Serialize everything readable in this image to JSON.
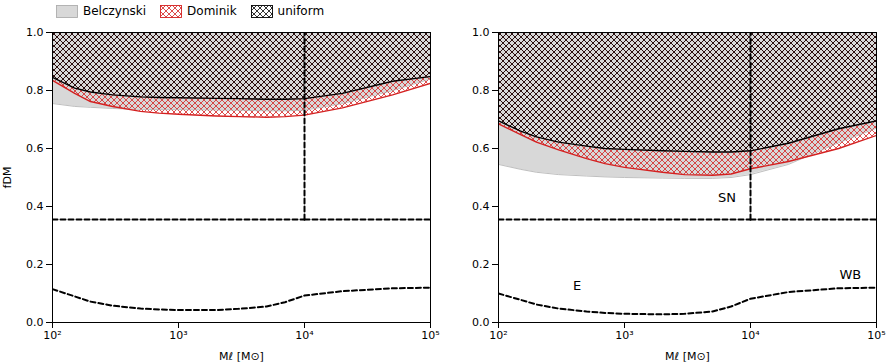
{
  "chart_data": [
    {
      "type": "area",
      "xlabel": "Mℓ [M⊙]",
      "ylabel": "fDM",
      "log": "x",
      "grid": false,
      "legend": "lower left",
      "xlim": [
        100,
        100000
      ],
      "ylim": [
        0.0,
        1.0
      ],
      "xticks": [
        {
          "value": 100,
          "label": "10²"
        },
        {
          "value": 1000,
          "label": "10³"
        },
        {
          "value": 10000,
          "label": "10⁴"
        },
        {
          "value": 100000,
          "label": "10⁵"
        }
      ],
      "yticks": [
        {
          "value": 0.0,
          "label": "0.0"
        },
        0.2,
        0.4,
        0.6,
        0.8,
        {
          "value": 1.0,
          "label": "1.0"
        }
      ],
      "x": [
        100,
        150,
        200,
        300,
        500,
        700,
        1000,
        2000,
        3000,
        5000,
        7000,
        10000,
        20000,
        50000,
        100000
      ],
      "series": [
        {
          "name": "Belczynski",
          "type": "area",
          "color": "#d8d8d8",
          "values": [
            0.755,
            0.745,
            0.742,
            0.738,
            0.735,
            0.734,
            0.734,
            0.733,
            0.732,
            0.73,
            0.73,
            0.732,
            0.755,
            0.8,
            0.84
          ]
        },
        {
          "name": "Dominik",
          "type": "hatch",
          "color": "#d42020",
          "values": [
            0.835,
            0.79,
            0.762,
            0.745,
            0.728,
            0.722,
            0.718,
            0.712,
            0.71,
            0.708,
            0.71,
            0.715,
            0.74,
            0.785,
            0.825
          ]
        },
        {
          "name": "uniform",
          "type": "hatch",
          "color": "black",
          "values": [
            0.845,
            0.808,
            0.795,
            0.785,
            0.778,
            0.776,
            0.775,
            0.773,
            0.772,
            0.77,
            0.77,
            0.772,
            0.79,
            0.832,
            0.848
          ]
        },
        {
          "type": "line",
          "color": "black",
          "line_style": "dashed",
          "x": [
            100,
            10000
          ],
          "values": [
            0.355,
            0.355
          ]
        },
        {
          "type": "line",
          "color": "black",
          "line_style": "dashed",
          "x": [
            10000,
            10000
          ],
          "values": [
            0.355,
            1.0
          ]
        },
        {
          "type": "line",
          "color": "black",
          "line_style": "dashed",
          "x": [
            10000,
            100000
          ],
          "values": [
            0.355,
            0.355
          ]
        },
        {
          "type": "line",
          "color": "black",
          "line_style": "dashed",
          "values": [
            0.115,
            0.09,
            0.072,
            0.058,
            0.048,
            0.045,
            0.043,
            0.043,
            0.047,
            0.055,
            0.07,
            0.093,
            0.108,
            0.118,
            0.12
          ]
        }
      ]
    },
    {
      "type": "area",
      "xlabel": "Mℓ [M⊙]",
      "log": "x",
      "grid": false,
      "legend": false,
      "xlim": [
        100,
        100000
      ],
      "ylim": [
        0.0,
        1.0
      ],
      "xticks": [
        {
          "value": 100,
          "label": "10²"
        },
        {
          "value": 1000,
          "label": "10³"
        },
        {
          "value": 10000,
          "label": "10⁴"
        },
        {
          "value": 100000,
          "label": "10⁵"
        }
      ],
      "yticks": [
        {
          "value": 0.0,
          "label": "0.0"
        },
        0.2,
        0.4,
        0.6,
        0.8,
        {
          "value": 1.0,
          "label": "1.0"
        }
      ],
      "x": [
        100,
        150,
        200,
        300,
        500,
        700,
        1000,
        2000,
        3000,
        5000,
        7000,
        10000,
        20000,
        50000,
        100000
      ],
      "series": [
        {
          "name": "Belczynski",
          "type": "area",
          "color": "#d8d8d8",
          "values": [
            0.545,
            0.528,
            0.518,
            0.51,
            0.505,
            0.502,
            0.5,
            0.498,
            0.497,
            0.497,
            0.5,
            0.51,
            0.545,
            0.62,
            0.67
          ]
        },
        {
          "name": "Dominik",
          "type": "hatch",
          "color": "#d42020",
          "values": [
            0.685,
            0.648,
            0.622,
            0.595,
            0.565,
            0.548,
            0.535,
            0.518,
            0.51,
            0.508,
            0.512,
            0.53,
            0.555,
            0.6,
            0.645
          ]
        },
        {
          "name": "uniform",
          "type": "hatch",
          "color": "black",
          "values": [
            0.695,
            0.66,
            0.64,
            0.622,
            0.608,
            0.6,
            0.597,
            0.592,
            0.59,
            0.588,
            0.588,
            0.592,
            0.618,
            0.668,
            0.695
          ]
        },
        {
          "type": "line",
          "color": "black",
          "line_style": "dashed",
          "x": [
            100,
            10000
          ],
          "values": [
            0.355,
            0.355
          ]
        },
        {
          "type": "line",
          "color": "black",
          "line_style": "dashed",
          "x": [
            10000,
            10000
          ],
          "values": [
            0.355,
            1.0
          ]
        },
        {
          "type": "line",
          "color": "black",
          "line_style": "dashed",
          "x": [
            10000,
            100000
          ],
          "values": [
            0.355,
            0.355
          ]
        },
        {
          "type": "line",
          "color": "black",
          "line_style": "dashed",
          "values": [
            0.1,
            0.078,
            0.062,
            0.048,
            0.038,
            0.033,
            0.03,
            0.028,
            0.03,
            0.038,
            0.055,
            0.082,
            0.105,
            0.118,
            0.12
          ]
        }
      ],
      "annotations": [
        {
          "text": "SN",
          "x": 6500,
          "y": 0.43
        },
        {
          "text": "E",
          "x": 420,
          "y": 0.125
        },
        {
          "text": "WB",
          "x": 62000,
          "y": 0.165
        }
      ]
    }
  ]
}
